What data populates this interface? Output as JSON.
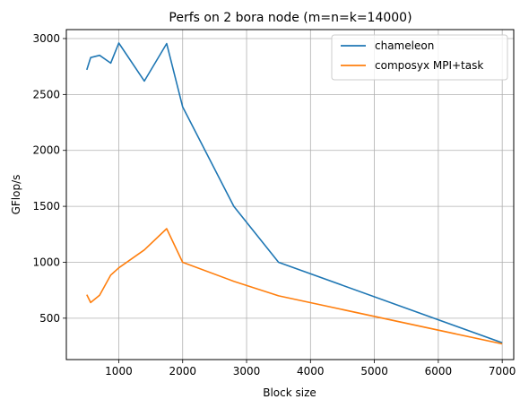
{
  "chart_data": {
    "type": "line",
    "title": "Perfs on 2 bora node (m=n=k=14000)",
    "xlabel": "Block size",
    "ylabel": "GFlop/s",
    "xlim": [
      180,
      7180
    ],
    "ylim": [
      130,
      3080
    ],
    "xticks": [
      1000,
      2000,
      3000,
      4000,
      5000,
      6000,
      7000
    ],
    "yticks": [
      500,
      1000,
      1500,
      2000,
      2500,
      3000
    ],
    "grid": true,
    "legend_position": "top-right",
    "series": [
      {
        "name": "chameleon",
        "color": "#1f77b4",
        "x": [
          500,
          560,
          700,
          875,
          1000,
          1400,
          1750,
          2000,
          2800,
          3500,
          7000
        ],
        "y": [
          2720,
          2830,
          2850,
          2780,
          2960,
          2620,
          2955,
          2390,
          1500,
          1000,
          280
        ]
      },
      {
        "name": "composyx MPI+task",
        "color": "#ff7f0e",
        "x": [
          500,
          560,
          700,
          875,
          1000,
          1400,
          1750,
          2000,
          2800,
          3500,
          7000
        ],
        "y": [
          710,
          640,
          705,
          885,
          950,
          1110,
          1300,
          1000,
          830,
          700,
          270
        ]
      }
    ]
  }
}
